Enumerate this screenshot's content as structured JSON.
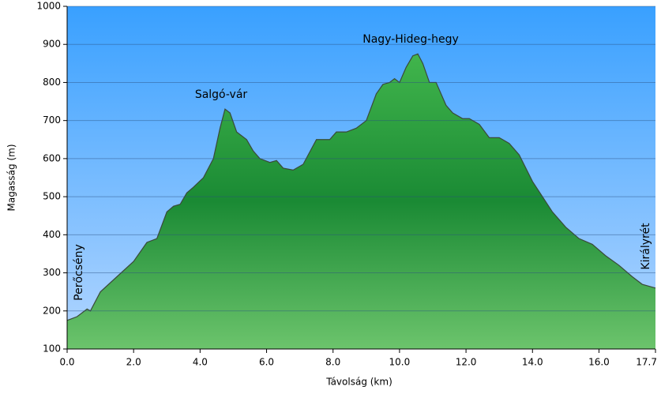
{
  "chart_data": {
    "type": "area",
    "x_label": "Távolság  (km)",
    "y_label": "Magasság (m)",
    "annotations": [
      "Perőcsény",
      "Salgó-vár",
      "Nagy-Hideg-hegy",
      "Királyrét"
    ],
    "x": [
      0,
      0.3,
      0.6,
      0.7,
      1.0,
      1.5,
      2.0,
      2.4,
      2.7,
      3.0,
      3.2,
      3.4,
      3.6,
      3.8,
      4.1,
      4.4,
      4.6,
      4.75,
      4.9,
      5.1,
      5.4,
      5.6,
      5.8,
      6.1,
      6.3,
      6.5,
      6.8,
      7.1,
      7.5,
      7.9,
      8.1,
      8.4,
      8.7,
      9.0,
      9.3,
      9.5,
      9.7,
      9.85,
      10.0,
      10.2,
      10.4,
      10.55,
      10.7,
      10.9,
      11.1,
      11.4,
      11.6,
      11.9,
      12.1,
      12.4,
      12.7,
      13.0,
      13.3,
      13.6,
      14.0,
      14.3,
      14.6,
      15.0,
      15.4,
      15.8,
      16.2,
      16.6,
      17.0,
      17.3,
      17.7
    ],
    "values": [
      175,
      185,
      205,
      200,
      250,
      290,
      330,
      380,
      390,
      460,
      475,
      480,
      510,
      525,
      550,
      600,
      680,
      730,
      720,
      670,
      650,
      620,
      600,
      590,
      595,
      575,
      570,
      585,
      650,
      650,
      670,
      670,
      680,
      700,
      770,
      795,
      800,
      810,
      800,
      840,
      870,
      875,
      850,
      800,
      800,
      740,
      720,
      705,
      705,
      690,
      655,
      655,
      640,
      610,
      540,
      500,
      460,
      420,
      390,
      375,
      345,
      320,
      290,
      270,
      260
    ],
    "color": "#1e9a3a",
    "line_color": "#3a4a3a",
    "xlim": [
      0,
      17.7
    ],
    "ylim": [
      100,
      1000
    ],
    "xticks": [
      {
        "value": 0,
        "label": "0.0"
      },
      {
        "value": 2,
        "label": "2.0"
      },
      {
        "value": 4,
        "label": "4.0"
      },
      {
        "value": 6,
        "label": "6.0"
      },
      {
        "value": 8,
        "label": "8.0"
      },
      {
        "value": 10,
        "label": "10.0"
      },
      {
        "value": 12,
        "label": "12.0"
      },
      {
        "value": 14,
        "label": "14.0"
      },
      {
        "value": 16,
        "label": "16.0"
      },
      {
        "value": 17.7,
        "label": "17.7"
      }
    ],
    "yticks": [
      100,
      200,
      300,
      400,
      500,
      600,
      700,
      800,
      900,
      1000
    ],
    "grid": true
  }
}
